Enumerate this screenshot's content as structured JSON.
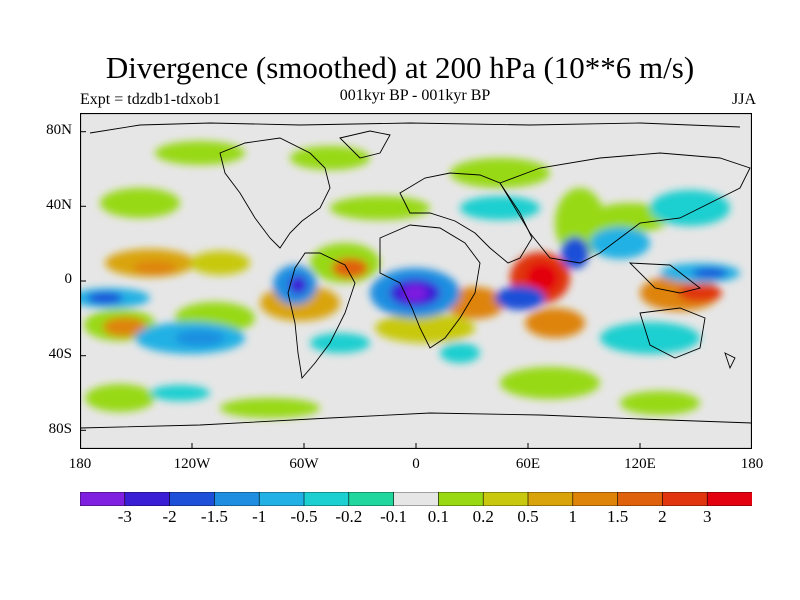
{
  "title": "Divergence (smoothed) at 200 hPa (10**6 m/s)",
  "experiment": "Expt = tdzdb1-tdxob1",
  "period": "001kyr BP - 001kyr BP",
  "season": "JJA",
  "axes": {
    "y_ticks": [
      "80N",
      "40N",
      "0",
      "40S",
      "80S"
    ],
    "x_ticks": [
      "180",
      "120W",
      "60W",
      "0",
      "60E",
      "120E",
      "180"
    ]
  },
  "colorbar": {
    "colors": [
      "#7f1fe0",
      "#3a1ed6",
      "#1d4fd8",
      "#1f8ee0",
      "#21b1e4",
      "#1ccfd0",
      "#20d79d",
      "#e6e6e6",
      "#98d913",
      "#c8c90f",
      "#d9a40a",
      "#de8408",
      "#e0610b",
      "#e0350e",
      "#e3000f"
    ],
    "labels": [
      "-3",
      "-2",
      "-1.5",
      "-1",
      "-0.5",
      "-0.2",
      "-0.1",
      "0.1",
      "0.2",
      "0.5",
      "1",
      "1.5",
      "2",
      "3"
    ]
  },
  "colors": {
    "background_field": "#e6e6e6",
    "coastline": "#000000"
  }
}
